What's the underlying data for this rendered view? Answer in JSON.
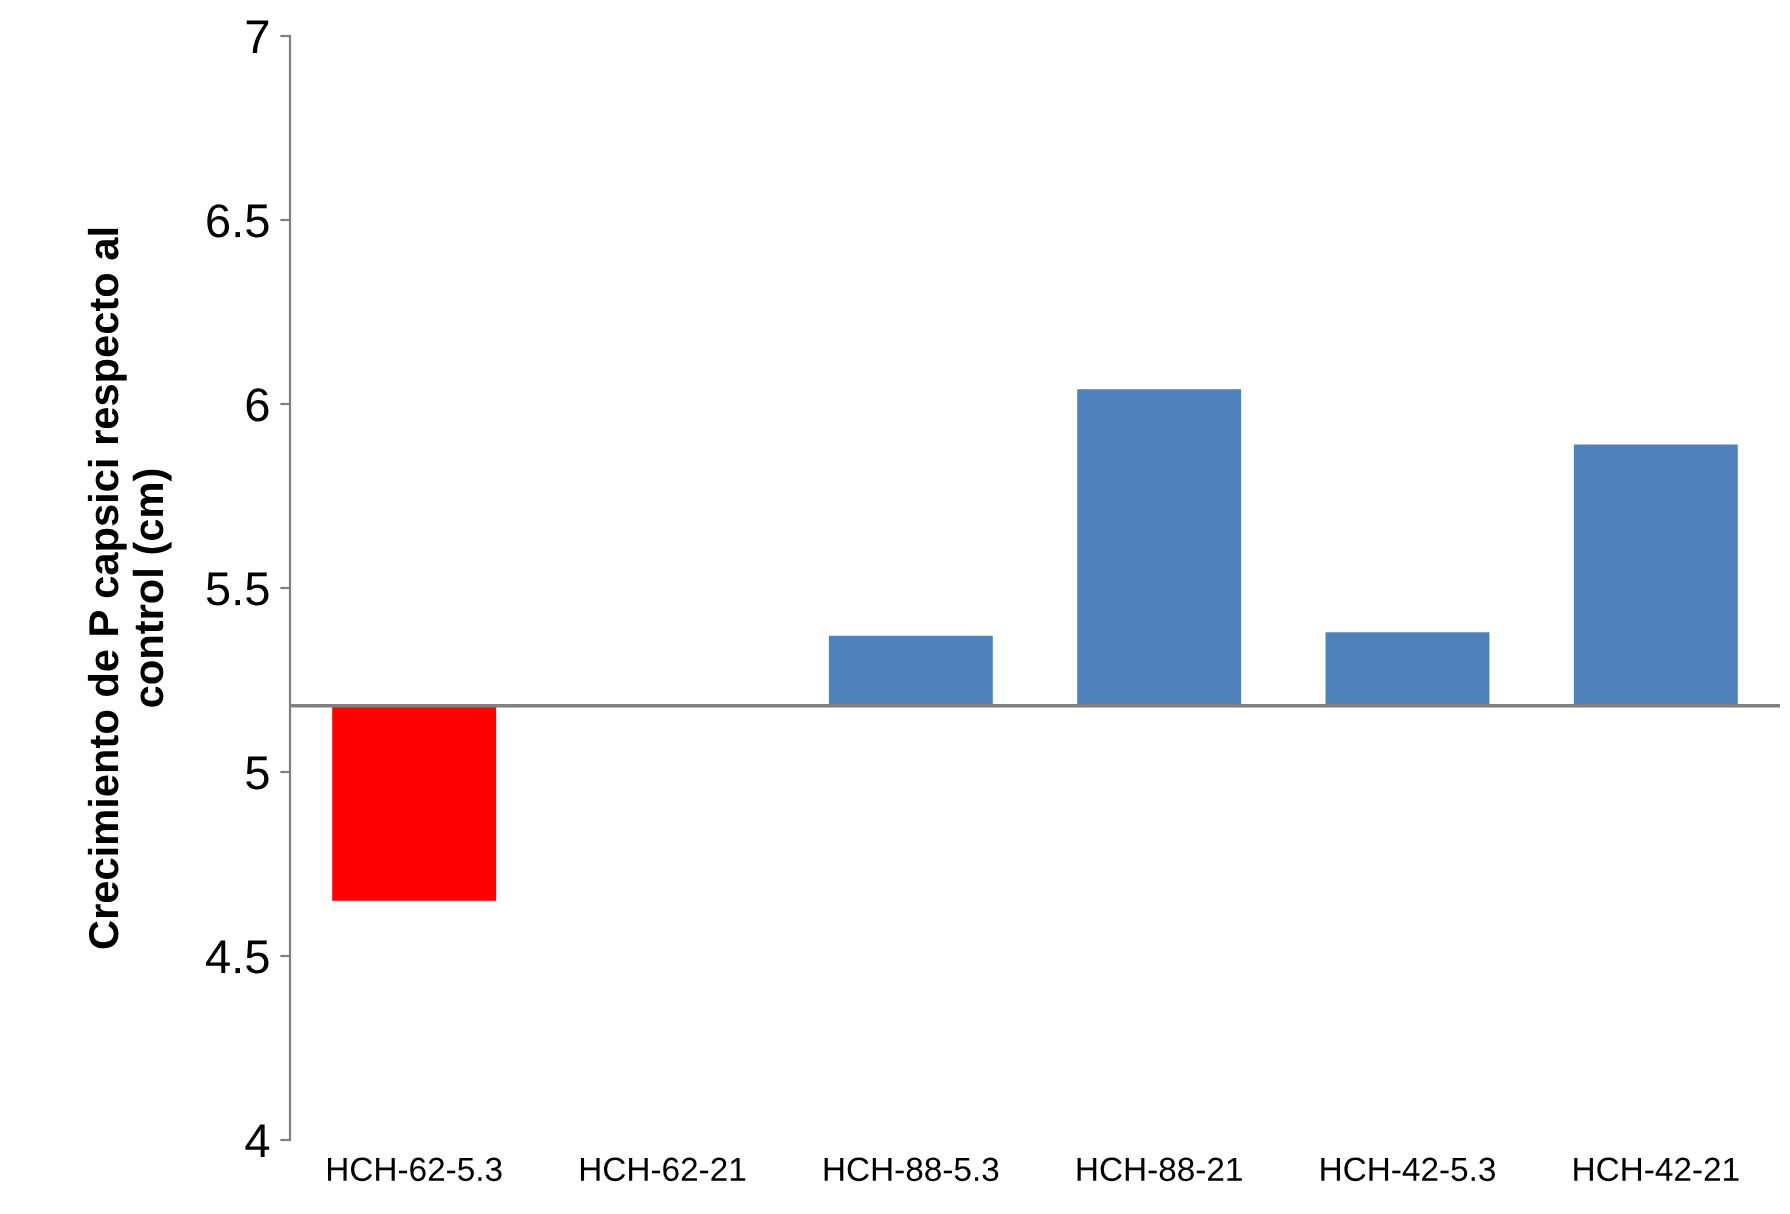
{
  "chart_data": {
    "type": "bar",
    "ylabel": "Crecimiento de P capsici respecto al\ncontrol (cm)",
    "categories": [
      "HCH-62-5.3",
      "HCH-62-21",
      "HCH-88-5.3",
      "HCH-88-21",
      "HCH-42-5.3",
      "HCH-42-21"
    ],
    "base": [
      5.18,
      null,
      5.18,
      5.18,
      5.18,
      5.18
    ],
    "values": [
      -0.53,
      null,
      0.19,
      0.86,
      0.2,
      0.71
    ],
    "colors": [
      "#ff0000",
      "#4f81bd",
      "#4f81bd",
      "#4f81bd",
      "#4f81bd",
      "#4f81bd"
    ],
    "ref_lines": [
      {
        "axis": "y",
        "value": 5.18,
        "color": "#808080"
      }
    ],
    "ylim": [
      4,
      7
    ],
    "yticks": [
      4,
      4.5,
      5,
      5.5,
      6,
      6.5,
      7
    ],
    "grid": false
  }
}
